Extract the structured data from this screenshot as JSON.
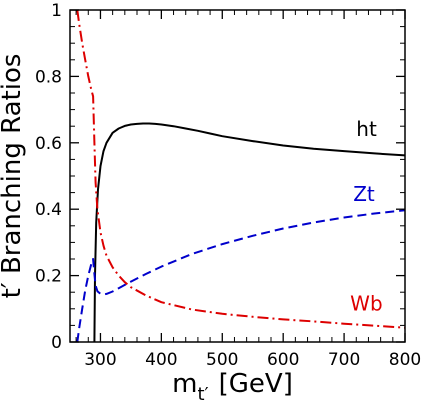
{
  "chart_data": {
    "type": "line",
    "ylabel": "t′ Branching Ratios",
    "xlabel": {
      "main": "m",
      "sub": "t′",
      "unit": "[GeV]"
    },
    "xlim": [
      250,
      800
    ],
    "ylim": [
      0,
      1
    ],
    "xticks": [
      300,
      400,
      500,
      600,
      700,
      800
    ],
    "xtick_labels": [
      "300",
      "400",
      "500",
      "600",
      "700",
      "800"
    ],
    "yticks": [
      0,
      0.2,
      0.4,
      0.6,
      0.8,
      1
    ],
    "ytick_labels": [
      "0",
      "0.2",
      "0.4",
      "0.6",
      "0.8",
      "1"
    ],
    "grid": false,
    "legend": "none",
    "series": [
      {
        "name": "ht",
        "color": "#000000",
        "style": "solid",
        "x": [
          290,
          291,
          293,
          296,
          300,
          305,
          310,
          320,
          330,
          340,
          350,
          360,
          370,
          380,
          390,
          400,
          420,
          440,
          460,
          480,
          500,
          550,
          600,
          650,
          700,
          750,
          800
        ],
        "y": [
          0.0,
          0.2,
          0.36,
          0.46,
          0.53,
          0.575,
          0.6,
          0.63,
          0.643,
          0.651,
          0.655,
          0.657,
          0.658,
          0.658,
          0.657,
          0.655,
          0.65,
          0.643,
          0.636,
          0.628,
          0.62,
          0.605,
          0.592,
          0.582,
          0.575,
          0.568,
          0.562
        ]
      },
      {
        "name": "Zt",
        "color": "#0000cc",
        "style": "dashed",
        "x": [
          262,
          265,
          270,
          275,
          280,
          285,
          288,
          290,
          292,
          295,
          300,
          305,
          310,
          320,
          330,
          340,
          350,
          375,
          400,
          450,
          500,
          550,
          600,
          650,
          700,
          750,
          800
        ],
        "y": [
          0.0,
          0.04,
          0.1,
          0.155,
          0.2,
          0.235,
          0.25,
          0.205,
          0.17,
          0.153,
          0.145,
          0.143,
          0.145,
          0.152,
          0.162,
          0.172,
          0.182,
          0.205,
          0.227,
          0.265,
          0.295,
          0.32,
          0.342,
          0.36,
          0.375,
          0.387,
          0.397
        ]
      },
      {
        "name": "Wb",
        "color": "#dd0000",
        "style": "dashdot",
        "x": [
          262,
          265,
          270,
          275,
          280,
          285,
          288,
          290,
          292,
          295,
          300,
          305,
          310,
          320,
          330,
          340,
          350,
          375,
          400,
          450,
          500,
          550,
          600,
          650,
          700,
          750,
          800
        ],
        "y": [
          1.0,
          0.96,
          0.9,
          0.85,
          0.8,
          0.76,
          0.74,
          0.6,
          0.48,
          0.4,
          0.33,
          0.29,
          0.26,
          0.225,
          0.2,
          0.18,
          0.165,
          0.14,
          0.12,
          0.098,
          0.085,
          0.076,
          0.068,
          0.062,
          0.055,
          0.049,
          0.043
        ]
      }
    ],
    "annotations": [
      {
        "text": "ht",
        "color": "#000000",
        "x": 720,
        "y": 0.62
      },
      {
        "text": "Zt",
        "color": "#0000cc",
        "x": 715,
        "y": 0.425
      },
      {
        "text": "Wb",
        "color": "#dd0000",
        "x": 710,
        "y": 0.095
      }
    ]
  }
}
